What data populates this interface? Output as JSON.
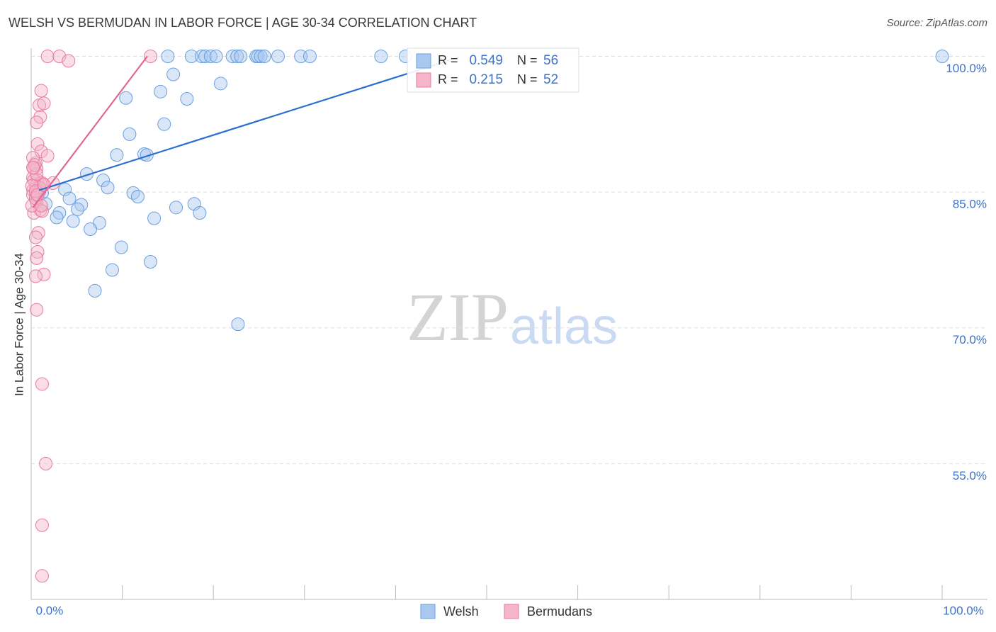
{
  "chart_data": {
    "type": "scatter",
    "title": "WELSH VS BERMUDAN IN LABOR FORCE | AGE 30-34 CORRELATION CHART",
    "source": "Source: ZipAtlas.com",
    "y_label": "In Labor Force | Age 30-34",
    "watermark": [
      "ZIP",
      "atlas"
    ],
    "xlim": [
      0,
      100
    ],
    "ylim": [
      40,
      100.9
    ],
    "xticks": [
      {
        "value": 0,
        "label": "0.0%"
      },
      {
        "value": 100,
        "label": "100.0%"
      }
    ],
    "xminor_ticks": [
      10,
      20,
      30,
      40,
      50,
      60,
      70,
      80,
      90
    ],
    "yticks": [
      {
        "value": 55,
        "label": "55.0%"
      },
      {
        "value": 70,
        "label": "70.0%"
      },
      {
        "value": 85,
        "label": "85.0%"
      },
      {
        "value": 100,
        "label": "100.0%"
      }
    ],
    "grid": true,
    "stat_labels": [
      "R =",
      "N ="
    ],
    "series": [
      {
        "name": "Welsh",
        "color": "#a9c8f0",
        "edge": "#6a9ee0",
        "line_color": "#2b6fd1",
        "r": 0.549,
        "n": 56,
        "trend": [
          [
            0.85,
            85.2
          ],
          [
            47,
            99.9
          ]
        ],
        "x": [
          15.0,
          17.6,
          18.7,
          19.1,
          19.7,
          20.3,
          22.1,
          22.6,
          23.0,
          24.7,
          24.9,
          25.2,
          25.6,
          27.1,
          29.6,
          30.6,
          38.4,
          41.1,
          100,
          15.6,
          14.2,
          10.4,
          17.1,
          20.8,
          14.6,
          10.8,
          9.4,
          12.4,
          12.7,
          6.1,
          7.9,
          8.4,
          3.7,
          11.2,
          11.7,
          1.2,
          4.2,
          1.6,
          5.5,
          5.1,
          3.1,
          17.9,
          15.9,
          18.5,
          2.8,
          4.6,
          7.5,
          13.5,
          6.5,
          9.9,
          8.9,
          13.1,
          7.0,
          22.7,
          0.5,
          0.9
        ],
        "y": [
          100,
          100,
          100,
          100,
          100,
          100,
          100,
          100,
          100,
          100,
          100,
          100,
          100,
          100,
          100,
          100,
          100,
          100,
          100,
          98.0,
          96.1,
          95.4,
          95.3,
          97.0,
          92.5,
          91.4,
          89.1,
          89.2,
          89.1,
          87.0,
          86.3,
          85.5,
          85.3,
          84.9,
          84.5,
          84.9,
          84.3,
          83.7,
          83.6,
          83.1,
          82.7,
          83.7,
          83.3,
          82.7,
          82.2,
          81.8,
          81.6,
          82.1,
          80.9,
          78.9,
          76.4,
          77.3,
          74.1,
          70.4,
          84.6,
          85.1
        ]
      },
      {
        "name": "Bermudans",
        "color": "#f5b6c9",
        "edge": "#e87a9e",
        "line_color": "#e06890",
        "r": 0.215,
        "n": 52,
        "trend": [
          [
            0.2,
            83.3
          ],
          [
            12.75,
            100
          ]
        ],
        "x": [
          1.8,
          3.1,
          4.1,
          13.1,
          1.1,
          0.9,
          1.4,
          1.0,
          0.6,
          0.7,
          1.1,
          1.8,
          0.5,
          0.3,
          0.6,
          0.2,
          0.7,
          1.0,
          0.5,
          0.2,
          0.9,
          1.2,
          2.4,
          0.2,
          0.6,
          1.0,
          0.3,
          0.8,
          0.5,
          0.7,
          0.6,
          1.4,
          0.5,
          0.6,
          1.2,
          1.6,
          1.2,
          1.2,
          0.1,
          0.5,
          0.9,
          0.3,
          0.6,
          0.2,
          0.4,
          1.2,
          0.1,
          1.1,
          0.5,
          0.7,
          0.2,
          1.4
        ],
        "y": [
          100,
          100,
          99.5,
          100,
          96.2,
          94.6,
          94.8,
          93.3,
          92.7,
          90.3,
          89.5,
          89.0,
          88.2,
          87.7,
          87.6,
          86.6,
          86.3,
          86.0,
          85.7,
          85.2,
          85.1,
          86.0,
          86.0,
          84.7,
          83.9,
          83.0,
          82.7,
          80.5,
          80.0,
          78.4,
          77.7,
          75.9,
          75.7,
          72.0,
          63.8,
          55.0,
          48.2,
          42.6,
          83.5,
          84.3,
          85.5,
          86.3,
          87.0,
          88.8,
          88.0,
          82.9,
          85.7,
          83.5,
          85.1,
          84.7,
          87.7,
          85.8
        ]
      }
    ]
  }
}
